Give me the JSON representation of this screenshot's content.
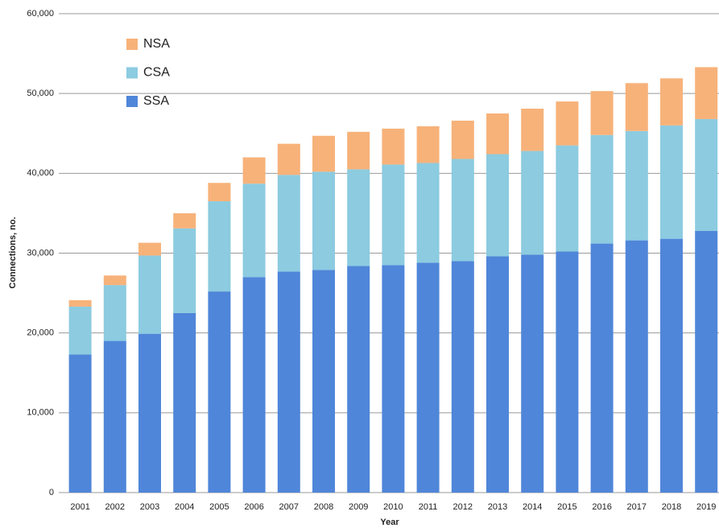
{
  "chart_data": {
    "type": "stacked_bar",
    "x_label": "Year",
    "y_label": "Connections, no.",
    "categories": [
      "2001",
      "2002",
      "2003",
      "2004",
      "2005",
      "2006",
      "2007",
      "2008",
      "2009",
      "2010",
      "2011",
      "2012",
      "2013",
      "2014",
      "2015",
      "2016",
      "2017",
      "2018",
      "2019"
    ],
    "series": [
      {
        "name": "SSA",
        "color": "#4f86d9",
        "values": [
          17300,
          19000,
          19900,
          22500,
          25200,
          27000,
          27700,
          27900,
          28400,
          28500,
          28800,
          29000,
          29600,
          29800,
          30200,
          31200,
          31600,
          31800,
          32800
        ]
      },
      {
        "name": "CSA",
        "color": "#8ccbe0",
        "values": [
          6000,
          7000,
          9800,
          10600,
          11300,
          11700,
          12100,
          12300,
          12100,
          12600,
          12500,
          12800,
          12800,
          13000,
          13300,
          13600,
          13700,
          14200,
          14000
        ]
      },
      {
        "name": "NSA",
        "color": "#f7b27a",
        "values": [
          800,
          1200,
          1600,
          1900,
          2300,
          3300,
          3900,
          4500,
          4700,
          4500,
          4600,
          4800,
          5100,
          5300,
          5500,
          5500,
          6000,
          5900,
          6500
        ]
      }
    ],
    "ylim": [
      0,
      60000
    ],
    "yticks": [
      0,
      {
        "value": 10000,
        "label": "10,000"
      },
      {
        "value": 20000,
        "label": "20,000"
      },
      {
        "value": 30000,
        "label": "30,000"
      },
      {
        "value": 40000,
        "label": "40,000"
      },
      {
        "value": 50000,
        "label": "50,000"
      },
      {
        "value": 60000,
        "label": "60,000"
      }
    ],
    "grid": true,
    "legend": "upper left"
  }
}
